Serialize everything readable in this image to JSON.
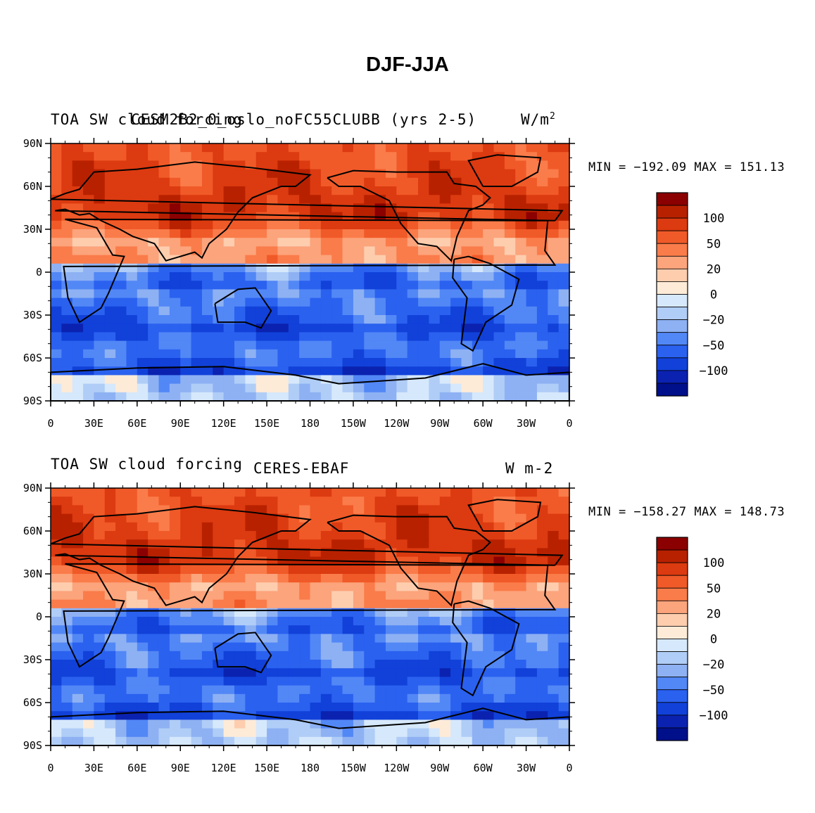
{
  "title": "DJF-JJA",
  "chart_data": [
    {
      "type": "heatmap",
      "variable": "TOA SW cloud forcing",
      "case": "CESM2B2_0_oslo_noFC55CLUBB (yrs 2-5)",
      "units": "W/m",
      "units_sup": "2",
      "min_label": "MIN = −192.09",
      "max_label": "MAX = 151.13",
      "min": -192.09,
      "max": 151.13,
      "x_ticks": [
        "0",
        "30E",
        "60E",
        "90E",
        "120E",
        "150E",
        "180",
        "150W",
        "120W",
        "90W",
        "60W",
        "30W",
        "0"
      ],
      "y_ticks": [
        "90N",
        "60N",
        "30N",
        "0",
        "30S",
        "60S",
        "90S"
      ],
      "xlim": [
        0,
        360
      ],
      "ylim": [
        -90,
        90
      ],
      "colorbar_labels": [
        "100",
        "50",
        "20",
        "0",
        "−20",
        "−50",
        "−100"
      ],
      "colorbar_colors": [
        "#8b0000",
        "#b82100",
        "#dc3a10",
        "#f05a28",
        "#fa7c4a",
        "#fca47c",
        "#fdcdae",
        "#fdebd8",
        "#d6e8fb",
        "#b0cdf7",
        "#8eb1f3",
        "#5287f6",
        "#2a61ef",
        "#1141d9",
        "#0b22b0",
        "#000f8a"
      ]
    },
    {
      "type": "heatmap",
      "variable": "TOA SW cloud forcing",
      "case": "CERES-EBAF",
      "units": "W m-2",
      "units_sup": "",
      "min_label": "MIN = −158.27",
      "max_label": "MAX = 148.73",
      "min": -158.27,
      "max": 148.73,
      "x_ticks": [
        "0",
        "30E",
        "60E",
        "90E",
        "120E",
        "150E",
        "180",
        "150W",
        "120W",
        "90W",
        "60W",
        "30W",
        "0"
      ],
      "y_ticks": [
        "90N",
        "60N",
        "30N",
        "0",
        "30S",
        "60S",
        "90S"
      ],
      "xlim": [
        0,
        360
      ],
      "ylim": [
        -90,
        90
      ],
      "colorbar_labels": [
        "100",
        "50",
        "20",
        "0",
        "−20",
        "−50",
        "−100"
      ],
      "colorbar_colors": [
        "#8b0000",
        "#b82100",
        "#dc3a10",
        "#f05a28",
        "#fa7c4a",
        "#fca47c",
        "#fdcdae",
        "#fdebd8",
        "#d6e8fb",
        "#b0cdf7",
        "#8eb1f3",
        "#5287f6",
        "#2a61ef",
        "#1141d9",
        "#0b22b0",
        "#000f8a"
      ]
    }
  ]
}
